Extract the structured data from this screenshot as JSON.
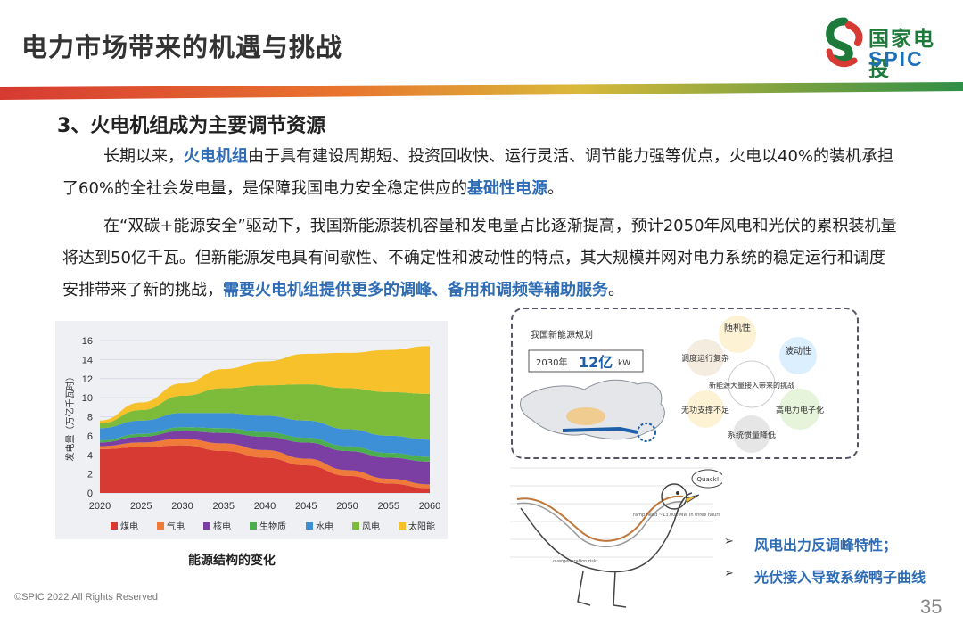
{
  "header": {
    "title": "电力市场带来的机遇与挑战",
    "logo_cn": "国家电投",
    "logo_en": "SPIC"
  },
  "section": {
    "title": "3、火电机组成为主要调节资源"
  },
  "para1": {
    "t1": "长期以来，",
    "h1": "火电机组",
    "t2": "由于具有建设周期短、投资回收快、运行灵活、调节能力强等优点，火电以40%的装机承担了60%的全社会发电量，是保障我国电力安全稳定供应的",
    "h2": "基础性电源",
    "t3": "。"
  },
  "para2": {
    "t1": "在“双碳+能源安全”驱动下，我国新能源装机容量和发电量占比逐渐提高，预计2050年风电和光伏的累积装机量将达到50亿千瓦。但新能源发电具有间歇性、不确定性和波动性的特点，其大规模并网对电力系统的稳定运行和调度安排带来了新的挑战，",
    "h1": "需要火电机组提供更多的调峰、备用和调频等辅助服务",
    "t2": "。"
  },
  "chart_data": {
    "type": "area",
    "stacked": true,
    "x": [
      2020,
      2025,
      2030,
      2035,
      2040,
      2045,
      2050,
      2055,
      2060
    ],
    "ylim": [
      0,
      16
    ],
    "yticks": [
      0,
      2,
      4,
      6,
      8,
      10,
      12,
      14,
      16
    ],
    "ylabel": "发电量（万亿千瓦时）",
    "series": [
      {
        "name": "煤电",
        "color": "#d63a32",
        "values": [
          4.6,
          4.8,
          5.0,
          4.4,
          3.7,
          2.9,
          1.8,
          1.0,
          0.5
        ]
      },
      {
        "name": "气电",
        "color": "#f07a3a",
        "values": [
          0.3,
          0.5,
          0.7,
          0.8,
          0.8,
          0.7,
          0.6,
          0.5,
          0.4
        ]
      },
      {
        "name": "核电",
        "color": "#7b3fa3",
        "values": [
          0.4,
          0.6,
          0.8,
          1.1,
          1.4,
          1.7,
          2.0,
          2.2,
          2.4
        ]
      },
      {
        "name": "生物质",
        "color": "#4cae4f",
        "values": [
          0.2,
          0.3,
          0.4,
          0.5,
          0.5,
          0.5,
          0.5,
          0.5,
          0.5
        ]
      },
      {
        "name": "水电",
        "color": "#3d8fd6",
        "values": [
          1.3,
          1.4,
          1.5,
          1.6,
          1.7,
          1.8,
          1.8,
          1.8,
          1.8
        ]
      },
      {
        "name": "风电",
        "color": "#7dbb3b",
        "values": [
          0.5,
          1.1,
          1.8,
          2.6,
          3.2,
          3.8,
          4.3,
          4.6,
          4.8
        ]
      },
      {
        "name": "太阳能",
        "color": "#f6c12a",
        "values": [
          0.3,
          0.8,
          1.3,
          2.0,
          2.5,
          3.2,
          3.7,
          4.4,
          5.0
        ]
      }
    ],
    "legend_position": "bottom",
    "caption": "能源结构的变化"
  },
  "map": {
    "title": "我国新能源规划",
    "plan_prefix": "2030年",
    "plan_value": "12亿",
    "plan_unit": "kW",
    "center_label": "新能源大量接入带来的挑战",
    "bubbles": [
      "随机性",
      "波动性",
      "高电力电子化",
      "系统惯量降低",
      "无功支撑不足",
      "调度运行复杂"
    ]
  },
  "duck": {
    "speech": "Quack!",
    "ramp_label": "ramp need ~13,000 MW in three hours",
    "overgen_label": "overgeneration risk"
  },
  "bullets": [
    {
      "mark": "➢",
      "text": "风电出力反调峰特性；"
    },
    {
      "mark": "➢",
      "text": "光伏接入导致系统鸭子曲线"
    }
  ],
  "footer": {
    "copyright": "©SPIC 2022.All Rights Reserved",
    "page": "35"
  }
}
